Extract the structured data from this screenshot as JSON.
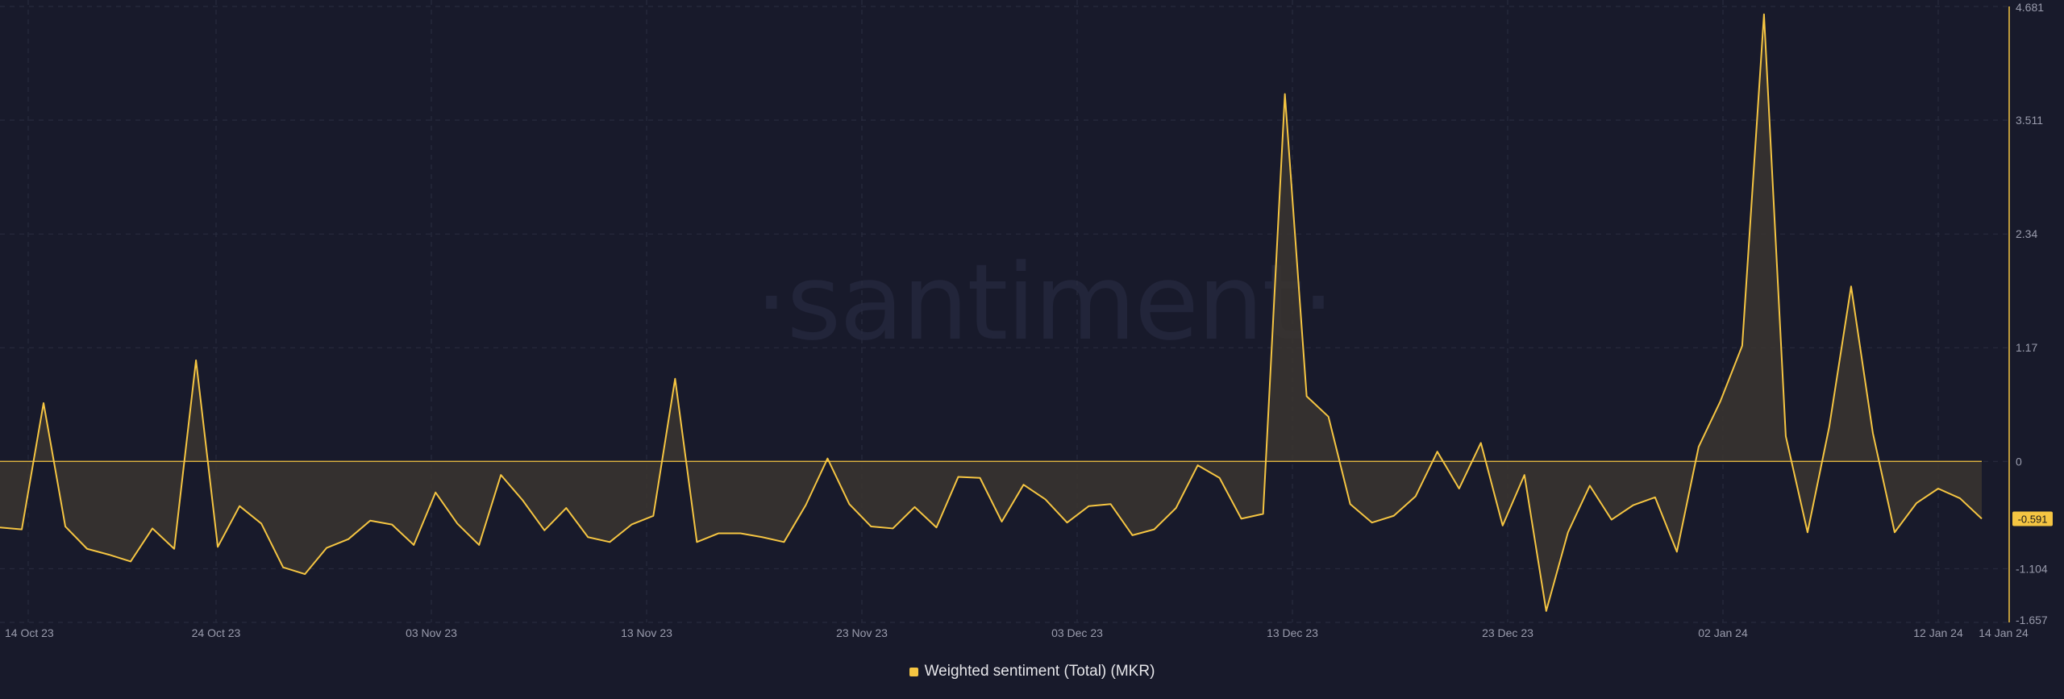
{
  "watermark": "·santiment·",
  "colors": {
    "background": "#181a2b",
    "line": "#f5c542",
    "fill": "#3a3530",
    "grid": "#2a2d40",
    "axis_text": "#9a9cad"
  },
  "chart_data": {
    "type": "area",
    "title": "",
    "xlabel": "",
    "ylabel": "",
    "x_start": "2023-10-14",
    "x_end": "2024-01-14",
    "x_ticks": [
      "14 Oct 23",
      "24 Oct 23",
      "03 Nov 23",
      "13 Nov 23",
      "23 Nov 23",
      "03 Dec 23",
      "13 Dec 23",
      "23 Dec 23",
      "02 Jan 24",
      "12 Jan 24",
      "14 Jan 24"
    ],
    "y_ticks": [
      "4.681",
      "3.511",
      "2.34",
      "1.17",
      "0",
      "-1.104",
      "-1.657"
    ],
    "y_tick_values": [
      4.681,
      3.511,
      2.34,
      1.17,
      0,
      -1.104,
      -1.657
    ],
    "ylim": [
      -1.657,
      4.681
    ],
    "current_value": "-0.591",
    "legend_position": "bottom-center",
    "series": [
      {
        "name": "Weighted sentiment (Total) (MKR)",
        "values": [
          -0.68,
          -0.7,
          0.6,
          -0.67,
          -0.9,
          -0.96,
          -1.03,
          -0.69,
          -0.9,
          1.04,
          -0.88,
          -0.46,
          -0.64,
          -1.09,
          -1.16,
          -0.89,
          -0.8,
          -0.61,
          -0.65,
          -0.86,
          -0.32,
          -0.64,
          -0.86,
          -0.14,
          -0.4,
          -0.71,
          -0.48,
          -0.78,
          -0.83,
          -0.65,
          -0.56,
          0.85,
          -0.83,
          -0.74,
          -0.74,
          -0.78,
          -0.83,
          -0.45,
          0.03,
          -0.44,
          -0.67,
          -0.69,
          -0.47,
          -0.68,
          -0.16,
          -0.17,
          -0.62,
          -0.24,
          -0.39,
          -0.63,
          -0.46,
          -0.44,
          -0.76,
          -0.7,
          -0.48,
          -0.04,
          -0.17,
          -0.59,
          -0.54,
          3.78,
          0.67,
          0.46,
          -0.44,
          -0.63,
          -0.56,
          -0.36,
          0.1,
          -0.28,
          0.19,
          -0.66,
          -0.14,
          -1.54,
          -0.73,
          -0.25,
          -0.6,
          -0.45,
          -0.37,
          -0.93,
          0.15,
          0.62,
          1.19,
          4.6,
          0.26,
          -0.73,
          0.36,
          1.8,
          0.29,
          -0.73,
          -0.43,
          -0.28,
          -0.38,
          -0.59
        ]
      }
    ]
  }
}
